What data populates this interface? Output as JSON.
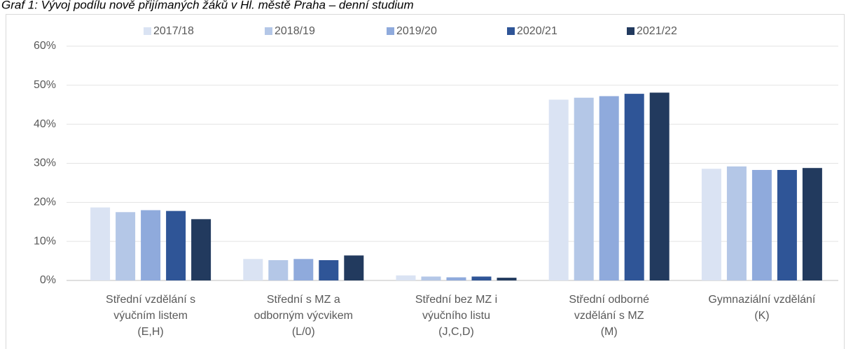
{
  "chart_data": {
    "type": "bar",
    "title": "Graf 1: Vývoj podílu nově přijímaných žáků v Hl. městě Praha – denní studium",
    "categories": [
      [
        "Střední vzdělání s",
        "výučním listem",
        "(E,H)"
      ],
      [
        "Střední s MZ a",
        "odborným výcvikem",
        "(L/0)"
      ],
      [
        "Střední bez MZ i",
        "výučního listu",
        "(J,C,D)"
      ],
      [
        "Střední odborné",
        "vzdělání s MZ",
        "(M)"
      ],
      [
        "Gymnaziální vzdělání",
        "(K)"
      ]
    ],
    "series": [
      {
        "name": "2017/18",
        "color": "#dae3f3",
        "values": [
          18.7,
          5.5,
          1.3,
          46.3,
          28.6
        ]
      },
      {
        "name": "2018/19",
        "color": "#b4c7e7",
        "values": [
          17.5,
          5.2,
          1.0,
          46.8,
          29.2
        ]
      },
      {
        "name": "2019/20",
        "color": "#8faadc",
        "values": [
          18.0,
          5.5,
          0.8,
          47.2,
          28.3
        ]
      },
      {
        "name": "2020/21",
        "color": "#2f5597",
        "values": [
          17.8,
          5.2,
          1.0,
          47.8,
          28.3
        ]
      },
      {
        "name": "2021/22",
        "color": "#223a5e",
        "values": [
          15.7,
          6.4,
          0.7,
          48.1,
          28.8
        ]
      }
    ],
    "ylim": [
      0,
      60
    ],
    "yticks": [
      {
        "value": 0,
        "label": "0%"
      },
      {
        "value": 10,
        "label": "10%"
      },
      {
        "value": 20,
        "label": "20%"
      },
      {
        "value": 30,
        "label": "30%"
      },
      {
        "value": 40,
        "label": "40%"
      },
      {
        "value": 50,
        "label": "50%"
      },
      {
        "value": 60,
        "label": "60%"
      }
    ],
    "grid": true,
    "legend": "top"
  }
}
